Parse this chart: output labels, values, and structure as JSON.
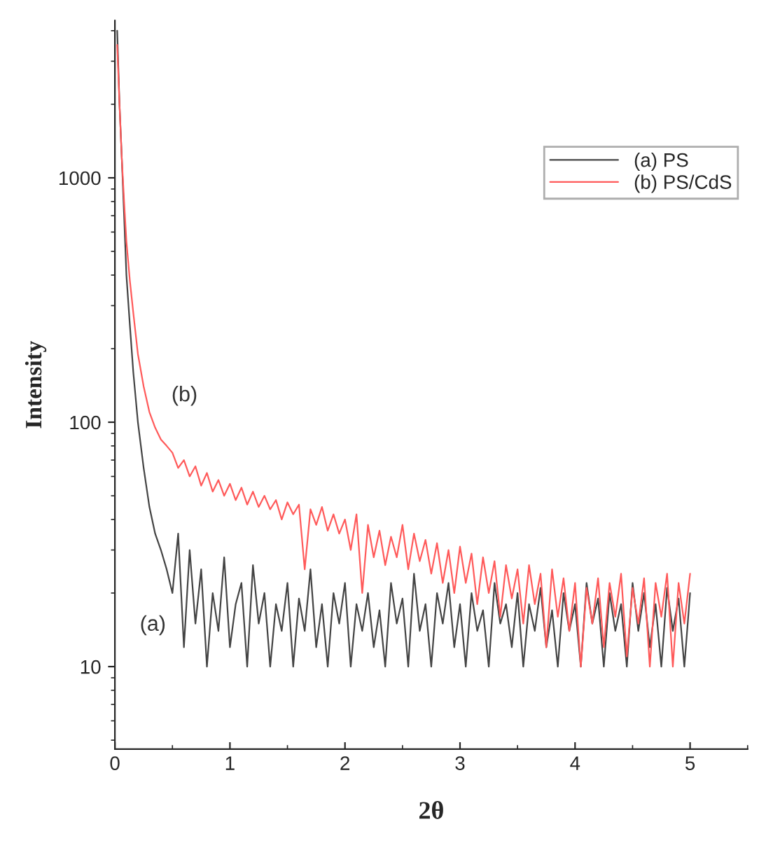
{
  "chart_data": {
    "type": "line",
    "xlabel": "2θ",
    "ylabel": "Intensity",
    "log": "y",
    "xlim": [
      0,
      5.5
    ],
    "xticks": [
      0,
      1,
      2,
      3,
      4,
      5
    ],
    "ylim": [
      4.6,
      4400
    ],
    "yticks": [
      10,
      100,
      1000
    ],
    "legend": "top right",
    "grid": false,
    "marker": "none",
    "line_style": "solid",
    "annotations": [
      "(b)",
      "(a)"
    ],
    "series": [
      {
        "name": "(a) PS",
        "color": "#444444",
        "x": [
          0.02,
          0.04,
          0.06,
          0.08,
          0.1,
          0.13,
          0.16,
          0.2,
          0.25,
          0.3,
          0.35,
          0.4,
          0.45,
          0.5,
          0.55,
          0.6,
          0.65,
          0.7,
          0.75,
          0.8,
          0.85,
          0.9,
          0.95,
          1.0,
          1.05,
          1.1,
          1.15,
          1.2,
          1.25,
          1.3,
          1.35,
          1.4,
          1.45,
          1.5,
          1.55,
          1.6,
          1.65,
          1.7,
          1.75,
          1.8,
          1.85,
          1.9,
          1.95,
          2.0,
          2.05,
          2.1,
          2.15,
          2.2,
          2.25,
          2.3,
          2.35,
          2.4,
          2.45,
          2.5,
          2.55,
          2.6,
          2.65,
          2.7,
          2.75,
          2.8,
          2.85,
          2.9,
          2.95,
          3.0,
          3.05,
          3.1,
          3.15,
          3.2,
          3.25,
          3.3,
          3.35,
          3.4,
          3.45,
          3.5,
          3.55,
          3.6,
          3.65,
          3.7,
          3.75,
          3.8,
          3.85,
          3.9,
          3.95,
          4.0,
          4.05,
          4.1,
          4.15,
          4.2,
          4.25,
          4.3,
          4.35,
          4.4,
          4.45,
          4.5,
          4.55,
          4.6,
          4.65,
          4.7,
          4.75,
          4.8,
          4.85,
          4.9,
          4.95,
          5.0
        ],
        "values": [
          4000,
          2000,
          1200,
          700,
          400,
          250,
          160,
          100,
          65,
          45,
          35,
          30,
          25,
          20,
          35,
          12,
          30,
          15,
          25,
          10,
          20,
          14,
          28,
          12,
          18,
          22,
          10,
          26,
          15,
          20,
          10,
          18,
          14,
          22,
          10,
          19,
          14,
          25,
          12,
          18,
          10,
          20,
          15,
          22,
          10,
          18,
          14,
          20,
          12,
          17,
          10,
          22,
          15,
          19,
          10,
          24,
          14,
          18,
          10,
          20,
          15,
          22,
          12,
          18,
          10,
          20,
          14,
          17,
          10,
          22,
          15,
          18,
          12,
          20,
          10,
          18,
          14,
          21,
          12,
          17,
          10,
          20,
          14,
          18,
          10,
          22,
          15,
          19,
          10,
          20,
          14,
          18,
          10,
          22,
          14,
          20,
          12,
          18,
          10,
          21,
          14,
          19,
          10,
          20
        ]
      },
      {
        "name": "(b) PS/CdS",
        "color": "#ff5a5a",
        "x": [
          0.02,
          0.04,
          0.06,
          0.08,
          0.1,
          0.13,
          0.16,
          0.2,
          0.25,
          0.3,
          0.35,
          0.4,
          0.45,
          0.5,
          0.55,
          0.6,
          0.65,
          0.7,
          0.75,
          0.8,
          0.85,
          0.9,
          0.95,
          1.0,
          1.05,
          1.1,
          1.15,
          1.2,
          1.25,
          1.3,
          1.35,
          1.4,
          1.45,
          1.5,
          1.55,
          1.6,
          1.65,
          1.7,
          1.75,
          1.8,
          1.85,
          1.9,
          1.95,
          2.0,
          2.05,
          2.1,
          2.15,
          2.2,
          2.25,
          2.3,
          2.35,
          2.4,
          2.45,
          2.5,
          2.55,
          2.6,
          2.65,
          2.7,
          2.75,
          2.8,
          2.85,
          2.9,
          2.95,
          3.0,
          3.05,
          3.1,
          3.15,
          3.2,
          3.25,
          3.3,
          3.35,
          3.4,
          3.45,
          3.5,
          3.55,
          3.6,
          3.65,
          3.7,
          3.75,
          3.8,
          3.85,
          3.9,
          3.95,
          4.0,
          4.05,
          4.1,
          4.15,
          4.2,
          4.25,
          4.3,
          4.35,
          4.4,
          4.45,
          4.5,
          4.55,
          4.6,
          4.65,
          4.7,
          4.75,
          4.8,
          4.85,
          4.9,
          4.95,
          5.0
        ],
        "values": [
          3500,
          2000,
          1200,
          800,
          550,
          380,
          280,
          190,
          140,
          110,
          95,
          85,
          80,
          75,
          65,
          70,
          60,
          66,
          55,
          62,
          52,
          58,
          50,
          56,
          48,
          54,
          46,
          52,
          45,
          50,
          44,
          48,
          40,
          47,
          42,
          46,
          25,
          44,
          38,
          45,
          36,
          42,
          35,
          40,
          30,
          42,
          20,
          38,
          28,
          36,
          26,
          34,
          28,
          38,
          25,
          35,
          27,
          33,
          24,
          32,
          22,
          30,
          20,
          31,
          22,
          29,
          18,
          28,
          20,
          27,
          16,
          26,
          19,
          25,
          15,
          26,
          18,
          24,
          12,
          25,
          16,
          23,
          14,
          22,
          10,
          21,
          15,
          23,
          12,
          22,
          16,
          24,
          11,
          21,
          15,
          23,
          10,
          22,
          16,
          24,
          10,
          22,
          15,
          24
        ]
      }
    ]
  }
}
